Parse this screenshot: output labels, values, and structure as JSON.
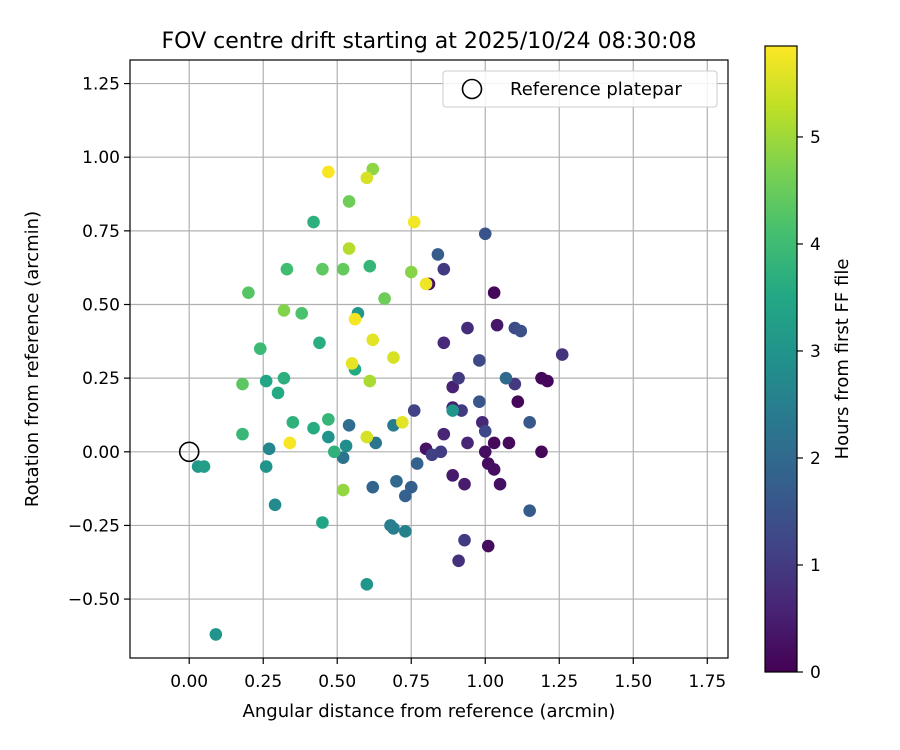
{
  "chart_data": {
    "type": "scatter",
    "title": "FOV centre drift starting at 2025/10/24 08:30:08",
    "xlabel": "Angular distance from reference (arcmin)",
    "ylabel": "Rotation from reference (arcmin)",
    "xlim": [
      -0.2,
      1.82
    ],
    "ylim": [
      -0.7,
      1.33
    ],
    "xticks": [
      0.0,
      0.25,
      0.5,
      0.75,
      1.0,
      1.25,
      1.5,
      1.75
    ],
    "xtick_labels": [
      "0.00",
      "0.25",
      "0.50",
      "0.75",
      "1.00",
      "1.25",
      "1.50",
      "1.75"
    ],
    "yticks": [
      -0.5,
      -0.25,
      0.0,
      0.25,
      0.5,
      0.75,
      1.0,
      1.25
    ],
    "ytick_labels": [
      "−0.50",
      "−0.25",
      "0.00",
      "0.25",
      "0.50",
      "0.75",
      "1.00",
      "1.25"
    ],
    "grid": true,
    "legend": {
      "placement": "upper right",
      "entries": [
        {
          "label": "Reference platepar",
          "marker": "open-circle",
          "color": "#000000"
        }
      ]
    },
    "reference_point": {
      "x": 0.0,
      "y": 0.0
    },
    "colorbar": {
      "label": "Hours from first FF file",
      "colormap": "viridis",
      "range": [
        0,
        5.85
      ],
      "ticks": [
        0,
        1,
        2,
        3,
        4,
        5
      ],
      "tick_labels": [
        "0",
        "1",
        "2",
        "3",
        "4",
        "5"
      ]
    },
    "points": [
      {
        "x": 1.03,
        "y": 0.54,
        "hours": 0.1
      },
      {
        "x": 1.11,
        "y": 0.17,
        "hours": 0.1
      },
      {
        "x": 1.19,
        "y": 0.25,
        "hours": 0.1
      },
      {
        "x": 1.21,
        "y": 0.24,
        "hours": 0.1
      },
      {
        "x": 1.19,
        "y": 0.0,
        "hours": 0.1
      },
      {
        "x": 1.08,
        "y": 0.03,
        "hours": 0.15
      },
      {
        "x": 1.03,
        "y": 0.03,
        "hours": 0.15
      },
      {
        "x": 1.0,
        "y": 0.0,
        "hours": 0.2
      },
      {
        "x": 1.01,
        "y": -0.04,
        "hours": 0.2
      },
      {
        "x": 1.03,
        "y": -0.06,
        "hours": 0.25
      },
      {
        "x": 1.05,
        "y": -0.11,
        "hours": 0.25
      },
      {
        "x": 1.01,
        "y": -0.32,
        "hours": 0.2
      },
      {
        "x": 0.8,
        "y": 0.01,
        "hours": 0.3
      },
      {
        "x": 0.81,
        "y": 0.57,
        "hours": 0.3
      },
      {
        "x": 1.04,
        "y": 0.43,
        "hours": 0.35
      },
      {
        "x": 0.89,
        "y": -0.08,
        "hours": 0.4
      },
      {
        "x": 0.93,
        "y": -0.11,
        "hours": 0.45
      },
      {
        "x": 0.89,
        "y": 0.15,
        "hours": 0.5
      },
      {
        "x": 0.89,
        "y": 0.22,
        "hours": 0.55
      },
      {
        "x": 0.86,
        "y": 0.06,
        "hours": 0.6
      },
      {
        "x": 0.94,
        "y": 0.03,
        "hours": 0.6
      },
      {
        "x": 0.99,
        "y": 0.1,
        "hours": 0.65
      },
      {
        "x": 0.86,
        "y": 0.37,
        "hours": 0.7
      },
      {
        "x": 0.91,
        "y": -0.37,
        "hours": 0.8
      },
      {
        "x": 0.93,
        "y": -0.3,
        "hours": 1.0
      },
      {
        "x": 0.94,
        "y": 0.42,
        "hours": 0.75
      },
      {
        "x": 1.26,
        "y": 0.33,
        "hours": 0.85
      },
      {
        "x": 1.1,
        "y": 0.23,
        "hours": 0.95
      },
      {
        "x": 0.92,
        "y": 0.14,
        "hours": 1.0
      },
      {
        "x": 0.91,
        "y": 0.25,
        "hours": 1.0
      },
      {
        "x": 0.85,
        "y": 0.0,
        "hours": 1.05
      },
      {
        "x": 0.82,
        "y": -0.01,
        "hours": 1.1
      },
      {
        "x": 0.76,
        "y": 0.14,
        "hours": 1.15
      },
      {
        "x": 0.86,
        "y": 0.62,
        "hours": 1.0
      },
      {
        "x": 1.0,
        "y": 0.07,
        "hours": 1.25
      },
      {
        "x": 0.98,
        "y": 0.31,
        "hours": 1.3
      },
      {
        "x": 1.1,
        "y": 0.42,
        "hours": 1.35
      },
      {
        "x": 1.12,
        "y": 0.41,
        "hours": 1.4
      },
      {
        "x": 0.98,
        "y": 0.17,
        "hours": 1.55
      },
      {
        "x": 1.15,
        "y": 0.1,
        "hours": 1.6
      },
      {
        "x": 1.15,
        "y": -0.2,
        "hours": 1.7
      },
      {
        "x": 1.0,
        "y": 0.74,
        "hours": 1.5
      },
      {
        "x": 0.84,
        "y": 0.67,
        "hours": 1.7
      },
      {
        "x": 0.75,
        "y": -0.12,
        "hours": 1.75
      },
      {
        "x": 0.73,
        "y": -0.15,
        "hours": 1.8
      },
      {
        "x": 0.77,
        "y": -0.04,
        "hours": 1.85
      },
      {
        "x": 0.62,
        "y": -0.12,
        "hours": 1.9
      },
      {
        "x": 0.7,
        "y": -0.1,
        "hours": 2.0
      },
      {
        "x": 1.07,
        "y": 0.25,
        "hours": 2.0
      },
      {
        "x": 0.54,
        "y": 0.09,
        "hours": 2.1
      },
      {
        "x": 0.52,
        "y": -0.02,
        "hours": 2.25
      },
      {
        "x": 0.63,
        "y": 0.03,
        "hours": 2.3
      },
      {
        "x": 0.69,
        "y": 0.09,
        "hours": 2.4
      },
      {
        "x": 0.68,
        "y": -0.25,
        "hours": 2.45
      },
      {
        "x": 0.69,
        "y": -0.26,
        "hours": 2.5
      },
      {
        "x": 0.73,
        "y": -0.27,
        "hours": 2.55
      },
      {
        "x": 0.27,
        "y": 0.01,
        "hours": 2.7
      },
      {
        "x": 0.29,
        "y": -0.18,
        "hours": 2.75
      },
      {
        "x": 0.53,
        "y": 0.02,
        "hours": 2.85
      },
      {
        "x": 0.47,
        "y": 0.05,
        "hours": 2.95
      },
      {
        "x": 0.89,
        "y": 0.14,
        "hours": 3.0
      },
      {
        "x": 0.26,
        "y": -0.05,
        "hours": 3.0
      },
      {
        "x": 0.09,
        "y": -0.62,
        "hours": 3.0
      },
      {
        "x": 0.6,
        "y": -0.45,
        "hours": 3.05
      },
      {
        "x": 0.57,
        "y": 0.47,
        "hours": 3.1
      },
      {
        "x": 0.03,
        "y": -0.05,
        "hours": 3.1
      },
      {
        "x": 0.05,
        "y": -0.05,
        "hours": 3.25
      },
      {
        "x": 0.45,
        "y": -0.24,
        "hours": 3.4
      },
      {
        "x": 0.26,
        "y": 0.24,
        "hours": 3.45
      },
      {
        "x": 0.56,
        "y": 0.28,
        "hours": 3.55
      },
      {
        "x": 0.3,
        "y": 0.2,
        "hours": 3.55
      },
      {
        "x": 0.42,
        "y": 0.08,
        "hours": 3.6
      },
      {
        "x": 0.44,
        "y": 0.37,
        "hours": 3.65
      },
      {
        "x": 0.32,
        "y": 0.25,
        "hours": 3.7
      },
      {
        "x": 0.49,
        "y": 0.0,
        "hours": 3.75
      },
      {
        "x": 0.42,
        "y": 0.78,
        "hours": 3.7
      },
      {
        "x": 0.35,
        "y": 0.1,
        "hours": 3.75
      },
      {
        "x": 0.47,
        "y": 0.11,
        "hours": 3.85
      },
      {
        "x": 0.61,
        "y": 0.63,
        "hours": 3.85
      },
      {
        "x": 0.18,
        "y": 0.06,
        "hours": 3.9
      },
      {
        "x": 0.24,
        "y": 0.35,
        "hours": 3.95
      },
      {
        "x": 0.33,
        "y": 0.62,
        "hours": 4.05
      },
      {
        "x": 0.38,
        "y": 0.47,
        "hours": 4.15
      },
      {
        "x": 0.2,
        "y": 0.54,
        "hours": 4.3
      },
      {
        "x": 0.18,
        "y": 0.23,
        "hours": 4.35
      },
      {
        "x": 0.45,
        "y": 0.62,
        "hours": 4.4
      },
      {
        "x": 0.52,
        "y": 0.62,
        "hours": 4.45
      },
      {
        "x": 0.66,
        "y": 0.52,
        "hours": 4.55
      },
      {
        "x": 0.54,
        "y": 0.85,
        "hours": 4.55
      },
      {
        "x": 0.32,
        "y": 0.48,
        "hours": 4.75
      },
      {
        "x": 0.75,
        "y": 0.61,
        "hours": 4.8
      },
      {
        "x": 0.62,
        "y": 0.96,
        "hours": 4.85
      },
      {
        "x": 0.52,
        "y": -0.13,
        "hours": 4.9
      },
      {
        "x": 0.61,
        "y": 0.24,
        "hours": 5.1
      },
      {
        "x": 0.54,
        "y": 0.69,
        "hours": 5.2
      },
      {
        "x": 0.6,
        "y": 0.93,
        "hours": 5.5
      },
      {
        "x": 0.69,
        "y": 0.32,
        "hours": 5.5
      },
      {
        "x": 0.6,
        "y": 0.05,
        "hours": 5.5
      },
      {
        "x": 0.62,
        "y": 0.38,
        "hours": 5.6
      },
      {
        "x": 0.72,
        "y": 0.1,
        "hours": 5.6
      },
      {
        "x": 0.55,
        "y": 0.3,
        "hours": 5.65
      },
      {
        "x": 0.8,
        "y": 0.57,
        "hours": 5.7
      },
      {
        "x": 0.76,
        "y": 0.78,
        "hours": 5.75
      },
      {
        "x": 0.56,
        "y": 0.45,
        "hours": 5.75
      },
      {
        "x": 0.34,
        "y": 0.03,
        "hours": 5.8
      },
      {
        "x": 0.47,
        "y": 0.95,
        "hours": 5.8
      }
    ]
  }
}
